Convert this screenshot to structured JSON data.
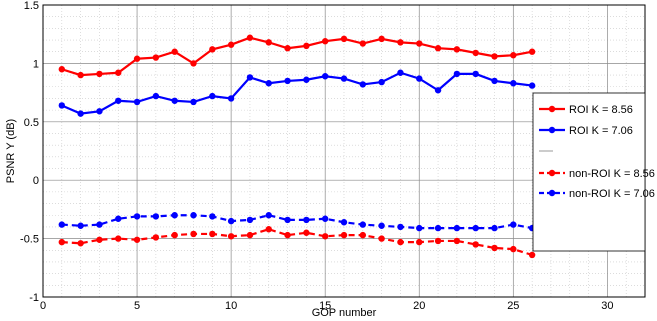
{
  "chart_data": {
    "type": "line",
    "title": "",
    "xlabel": "GOP number",
    "ylabel": "PSNR Y (dB)",
    "xlim": [
      0,
      32
    ],
    "ylim": [
      -1,
      1.5
    ],
    "xticks": [
      0,
      5,
      10,
      15,
      20,
      25,
      30
    ],
    "xtick_labels": [
      "0",
      "5",
      "10",
      "15",
      "20",
      "25",
      "30"
    ],
    "yticks": [
      -1,
      -0.5,
      0,
      0.5,
      1,
      1.5
    ],
    "ytick_labels": [
      "-1",
      "-0.5",
      "0",
      "0.5",
      "1",
      "1.5"
    ],
    "grid": true,
    "legend_position": "right",
    "x": [
      1,
      2,
      3,
      4,
      5,
      6,
      7,
      8,
      9,
      10,
      11,
      12,
      13,
      14,
      15,
      16,
      17,
      18,
      19,
      20,
      21,
      22,
      23,
      24,
      25,
      26
    ],
    "series": [
      {
        "name": "ROI K = 8.56",
        "color": "#ff0000",
        "dashed": false,
        "values": [
          0.95,
          0.9,
          0.91,
          0.92,
          1.04,
          1.05,
          1.1,
          1.0,
          1.12,
          1.16,
          1.22,
          1.18,
          1.13,
          1.15,
          1.19,
          1.21,
          1.17,
          1.21,
          1.18,
          1.17,
          1.13,
          1.12,
          1.09,
          1.06,
          1.07,
          1.1
        ]
      },
      {
        "name": "ROI K = 7.06",
        "color": "#0000ff",
        "dashed": false,
        "values": [
          0.64,
          0.57,
          0.59,
          0.68,
          0.67,
          0.72,
          0.68,
          0.67,
          0.72,
          0.7,
          0.88,
          0.83,
          0.85,
          0.86,
          0.89,
          0.87,
          0.82,
          0.84,
          0.92,
          0.87,
          0.77,
          0.91,
          0.91,
          0.85,
          0.83,
          0.81
        ]
      },
      {
        "name": "non-ROI K = 8.56",
        "color": "#ff0000",
        "dashed": true,
        "values": [
          -0.53,
          -0.54,
          -0.51,
          -0.5,
          -0.51,
          -0.49,
          -0.47,
          -0.46,
          -0.46,
          -0.48,
          -0.47,
          -0.42,
          -0.47,
          -0.45,
          -0.48,
          -0.47,
          -0.47,
          -0.5,
          -0.53,
          -0.53,
          -0.52,
          -0.52,
          -0.55,
          -0.58,
          -0.59,
          -0.64
        ]
      },
      {
        "name": "non-ROI K = 7.06",
        "color": "#0000ff",
        "dashed": true,
        "values": [
          -0.38,
          -0.39,
          -0.38,
          -0.33,
          -0.31,
          -0.31,
          -0.3,
          -0.3,
          -0.31,
          -0.35,
          -0.34,
          -0.3,
          -0.34,
          -0.34,
          -0.33,
          -0.36,
          -0.38,
          -0.39,
          -0.4,
          -0.41,
          -0.41,
          -0.41,
          -0.41,
          -0.41,
          -0.38,
          -0.41
        ]
      }
    ]
  }
}
